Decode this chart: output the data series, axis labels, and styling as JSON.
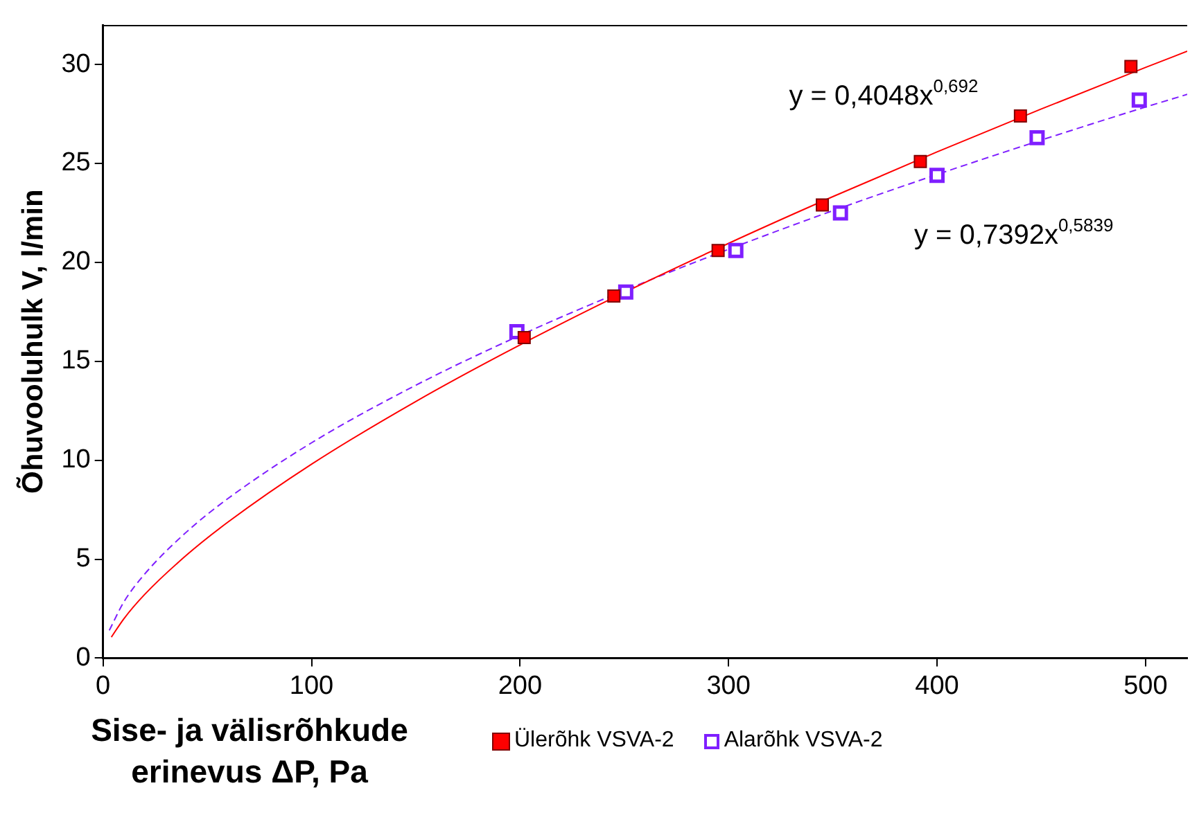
{
  "chart_data": {
    "type": "scatter",
    "xlabel": "Sise- ja välisrõhkude erinevus ΔP, Pa",
    "ylabel": "Õhuvooluhulk V, l/min",
    "xlim": [
      0,
      520
    ],
    "ylim": [
      0,
      32
    ],
    "xticks": [
      0,
      100,
      200,
      300,
      400,
      500
    ],
    "yticks": [
      0,
      5,
      10,
      15,
      20,
      25,
      30
    ],
    "grid": false,
    "legend": "bottom",
    "series": [
      {
        "name": "Ülerõhk VSVA-2",
        "marker": "square",
        "color": "#ff0000",
        "x": [
          202,
          245,
          295,
          345,
          392,
          440,
          493
        ],
        "values": [
          16.2,
          18.3,
          20.6,
          22.9,
          25.1,
          27.4,
          29.9
        ]
      },
      {
        "name": "Alarõhk VSVA-2",
        "marker": "square",
        "color": "#7f1fff",
        "x": [
          198.5,
          250.7,
          303.5,
          353.7,
          400,
          448,
          497
        ],
        "values": [
          16.5,
          18.5,
          20.6,
          22.5,
          24.4,
          26.3,
          28.2
        ]
      },
      {
        "type": "line",
        "marker": "none",
        "line_style": "solid",
        "color": "#ff0000",
        "x": [
          4,
          10,
          20,
          40,
          60,
          100,
          150,
          200,
          250,
          300,
          350,
          400,
          450,
          500,
          520
        ],
        "values": [
          1.06,
          1.99,
          3.22,
          5.2,
          6.88,
          9.8,
          12.97,
          15.83,
          18.48,
          20.96,
          23.32,
          25.58,
          27.75,
          29.85,
          30.67
        ]
      },
      {
        "type": "line",
        "marker": "none",
        "line_style": "dashed",
        "color": "#7f1fff",
        "x": [
          3,
          10,
          20,
          40,
          60,
          100,
          150,
          200,
          250,
          300,
          350,
          400,
          450,
          500,
          520
        ],
        "values": [
          1.4,
          2.84,
          4.25,
          6.37,
          8.07,
          10.88,
          13.79,
          16.31,
          18.58,
          20.66,
          22.61,
          24.44,
          26.18,
          27.85,
          28.49
        ]
      }
    ],
    "annotations": [
      "y = 0,4048x$^{0,692}$",
      "y = 0,7392x$^{0,5839}$"
    ]
  }
}
